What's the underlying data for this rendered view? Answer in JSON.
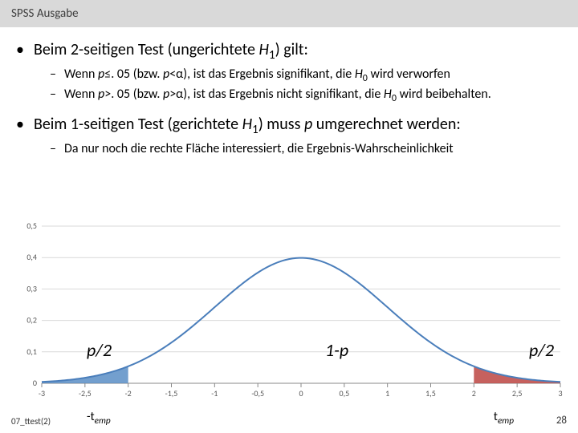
{
  "header": {
    "title": "SPSS Ausgabe"
  },
  "bullets": {
    "main1": "Beim 2-seitigen Test (ungerichtete ",
    "main1_ital": "H",
    "main1_sub": "1",
    "main1_end": ") gilt:",
    "sub1a_pre": "Wenn ",
    "sub1a_p1": "p",
    "sub1a_mid": "≤. 05 (bzw. ",
    "sub1a_p2": "p",
    "sub1a_mid2": "<α), ist das Ergebnis signifikant, die ",
    "sub1a_h": "H",
    "sub1a_hsub": "0",
    "sub1a_end": " wird verworfen",
    "sub1b_pre": "Wenn ",
    "sub1b_p1": "p",
    "sub1b_mid": ">. 05 (bzw. ",
    "sub1b_p2": "p",
    "sub1b_mid2": ">α), ist das Ergebnis nicht signifikant, die ",
    "sub1b_h": "H",
    "sub1b_hsub": "0",
    "sub1b_end": " wird beibehalten.",
    "main2_pre": "Beim 1-seitigen Test (gerichtete ",
    "main2_ital": "H",
    "main2_sub": "1",
    "main2_mid": ") muss ",
    "main2_p": "p",
    "main2_end": " umgerechnet werden:",
    "sub2": "Da nur noch die rechte Fläche interessiert, die Ergebnis-Wahrscheinlichkeit"
  },
  "chart": {
    "type": "line",
    "xlim": [
      -3,
      3
    ],
    "ylim": [
      0,
      0.5
    ],
    "ytick_labels": [
      "0",
      "0,1",
      "0,2",
      "0,3",
      "0,4",
      "0,5"
    ],
    "yticks": [
      0,
      0.1,
      0.2,
      0.3,
      0.4,
      0.5
    ],
    "xtick_labels": [
      "-3",
      "-2,5",
      "-2",
      "-1,5",
      "-1",
      "-0,5",
      "0",
      "0,5",
      "1",
      "1,5",
      "2",
      "2,5",
      "3"
    ],
    "xticks": [
      -3,
      -2.5,
      -2,
      -1.5,
      -1,
      -0.5,
      0,
      0.5,
      1,
      1.5,
      2,
      2.5,
      3
    ],
    "curve_color": "#4a7ebb",
    "curve_width": 2,
    "fill_left_color": "#5b8ec6",
    "fill_right_color": "#c0504d",
    "grid_color": "#d9d9d9",
    "tail_cutoff": 2.0,
    "background_color": "#ffffff",
    "axis_color": "#888888"
  },
  "labels": {
    "p2_left": "p/2",
    "one_minus_p": "1-p",
    "p2_right": "p/2",
    "temp_left_pre": "-t",
    "temp_left_sub": "emp",
    "temp_right_pre": "t",
    "temp_right_sub": "emp"
  },
  "footer": {
    "left": "07_ttest(2)",
    "page": "28"
  }
}
